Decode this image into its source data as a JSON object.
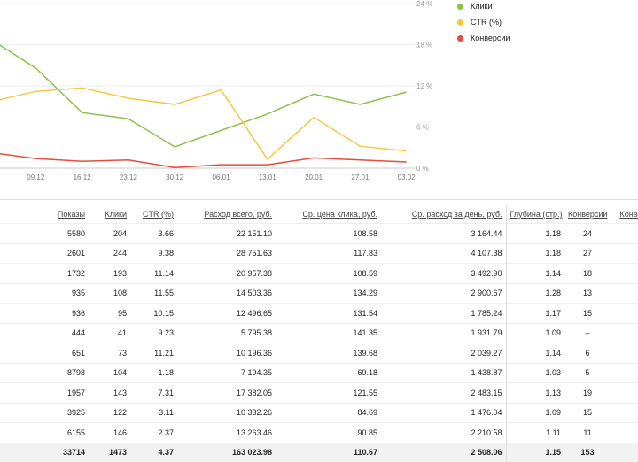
{
  "chart_data": {
    "type": "line",
    "categories": [
      "",
      "09.12",
      "16.12",
      "23.12",
      "30.12",
      "06.01",
      "13.01",
      "20.01",
      "27.01",
      "03.02"
    ],
    "y_ticks": [
      "0 %",
      "6 %",
      "12 %",
      "18 %",
      "24 %"
    ],
    "ylim": [
      0,
      24
    ],
    "grid": true,
    "legend_position": "top-right",
    "series": [
      {
        "name": "Клики",
        "color": "#8bc34a",
        "values": [
          18.9,
          14.6,
          8.1,
          7.2,
          3.1,
          5.5,
          7.9,
          10.8,
          9.3,
          11.1
        ]
      },
      {
        "name": "CTR (%)",
        "color": "#f5c842",
        "values": [
          9.6,
          11.2,
          11.7,
          10.2,
          9.3,
          11.4,
          1.3,
          7.4,
          3.2,
          2.5
        ]
      },
      {
        "name": "Конверсии",
        "color": "#e74c3c",
        "values": [
          2.3,
          1.4,
          1.0,
          1.2,
          0.1,
          0.5,
          0.5,
          1.5,
          1.2,
          0.9
        ]
      }
    ]
  },
  "table": {
    "headers": [
      "Показы",
      "Клики",
      "CTR (%)",
      "Расход всего, руб.",
      "Ср. цена клика, руб.",
      "Ср. расход за день, руб.",
      "Глубина (стр.)",
      "Конверсии",
      "Конвер"
    ],
    "rows": [
      [
        "5580",
        "204",
        "3.66",
        "22 151.10",
        "108.58",
        "3 164.44",
        "1.18",
        "24"
      ],
      [
        "2601",
        "244",
        "9.38",
        "28 751.63",
        "117.83",
        "4 107.38",
        "1.18",
        "27"
      ],
      [
        "1732",
        "193",
        "11.14",
        "20 957.38",
        "108.59",
        "3 492.90",
        "1.14",
        "18"
      ],
      [
        "935",
        "108",
        "11.55",
        "14 503.36",
        "134.29",
        "2 900.67",
        "1.28",
        "13"
      ],
      [
        "936",
        "95",
        "10.15",
        "12 496.65",
        "131.54",
        "1 785.24",
        "1.17",
        "15"
      ],
      [
        "444",
        "41",
        "9.23",
        "5 795.38",
        "141.35",
        "1 931.79",
        "1.09",
        "–"
      ],
      [
        "651",
        "73",
        "11.21",
        "10 196.36",
        "139.68",
        "2 039.27",
        "1.14",
        "6"
      ],
      [
        "8798",
        "104",
        "1.18",
        "7 194.35",
        "69.18",
        "1 438.87",
        "1.03",
        "5"
      ],
      [
        "1957",
        "143",
        "7.31",
        "17 382.05",
        "121.55",
        "2 483.15",
        "1.13",
        "19"
      ],
      [
        "3925",
        "122",
        "3.11",
        "10 332.26",
        "84.69",
        "1 476.04",
        "1.09",
        "15"
      ],
      [
        "6155",
        "146",
        "2.37",
        "13 263.46",
        "90.85",
        "2 210.58",
        "1.11",
        "11"
      ]
    ],
    "total": [
      "33714",
      "1473",
      "4.37",
      "163 023.98",
      "110.67",
      "2 508.06",
      "1.15",
      "153"
    ]
  }
}
